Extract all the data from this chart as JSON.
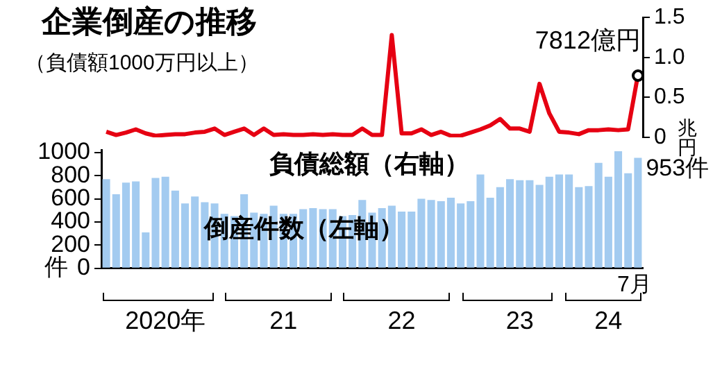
{
  "chart_data": [
    {
      "type": "line",
      "title": "企業倒産の推移",
      "subtitle": "（負債額1000万円以上）",
      "ylabel": "兆円",
      "categories": [
        null,
        null,
        null,
        null,
        null,
        null,
        null,
        null,
        null,
        null,
        null,
        null,
        null,
        null,
        null,
        null,
        null,
        null,
        null,
        null,
        null,
        null,
        null,
        null,
        null,
        null,
        null,
        null,
        null,
        null,
        null,
        null,
        null,
        null,
        null,
        null,
        null,
        null,
        null,
        null,
        null,
        null,
        null,
        null,
        null,
        null,
        null,
        null,
        null,
        null,
        null,
        null,
        null,
        null,
        null
      ],
      "series": [
        {
          "name": "負債総額（右軸）",
          "color": "#e60012",
          "values": [
            0.07,
            0.03,
            0.06,
            0.1,
            0.05,
            0.02,
            0.03,
            0.04,
            0.04,
            0.06,
            0.07,
            0.11,
            0.03,
            0.07,
            0.11,
            0.03,
            0.11,
            0.03,
            0.04,
            0.03,
            0.03,
            0.04,
            0.03,
            0.04,
            0.03,
            0.03,
            0.11,
            0.03,
            0.03,
            1.28,
            0.05,
            0.05,
            0.1,
            0.03,
            0.07,
            0.02,
            0.02,
            0.06,
            0.1,
            0.15,
            0.23,
            0.11,
            0.11,
            0.07,
            0.67,
            0.3,
            0.07,
            0.06,
            0.04,
            0.09,
            0.09,
            0.1,
            0.09,
            0.1,
            0.7812
          ]
        }
      ],
      "annotations": [
        "7812億円"
      ],
      "ylim": [
        0,
        1.5
      ],
      "yticks": [
        0,
        0.5,
        {
          "value": 1,
          "label": "1.0"
        },
        1.5
      ],
      "tick_labels": "y",
      "grid": false,
      "legend": false
    },
    {
      "type": "bar",
      "ylabel": "件",
      "categories": [
        null,
        null,
        null,
        null,
        null,
        null,
        "2020年",
        null,
        null,
        null,
        null,
        null,
        null,
        null,
        null,
        null,
        null,
        null,
        "21",
        null,
        null,
        null,
        null,
        null,
        null,
        null,
        null,
        null,
        null,
        null,
        "22",
        null,
        null,
        null,
        null,
        null,
        null,
        null,
        null,
        null,
        null,
        null,
        "23",
        null,
        null,
        null,
        null,
        null,
        null,
        null,
        null,
        "24",
        null,
        null,
        null
      ],
      "series": [
        {
          "name": "倒産件数（左軸）",
          "color": "#a3cbf0",
          "values": [
            770,
            640,
            740,
            750,
            310,
            780,
            790,
            670,
            560,
            620,
            570,
            560,
            470,
            450,
            640,
            480,
            470,
            540,
            470,
            470,
            510,
            520,
            510,
            510,
            450,
            460,
            590,
            480,
            520,
            540,
            490,
            490,
            600,
            590,
            580,
            610,
            560,
            580,
            810,
            610,
            700,
            770,
            760,
            760,
            720,
            790,
            810,
            810,
            700,
            710,
            910,
            790,
            1010,
            820,
            953
          ]
        }
      ],
      "ylim": [
        0,
        1020
      ],
      "yticks": [
        0,
        200,
        400,
        600,
        800,
        1000
      ],
      "annotations": [
        "953件",
        "7月"
      ],
      "grid": false,
      "legend": false
    }
  ]
}
